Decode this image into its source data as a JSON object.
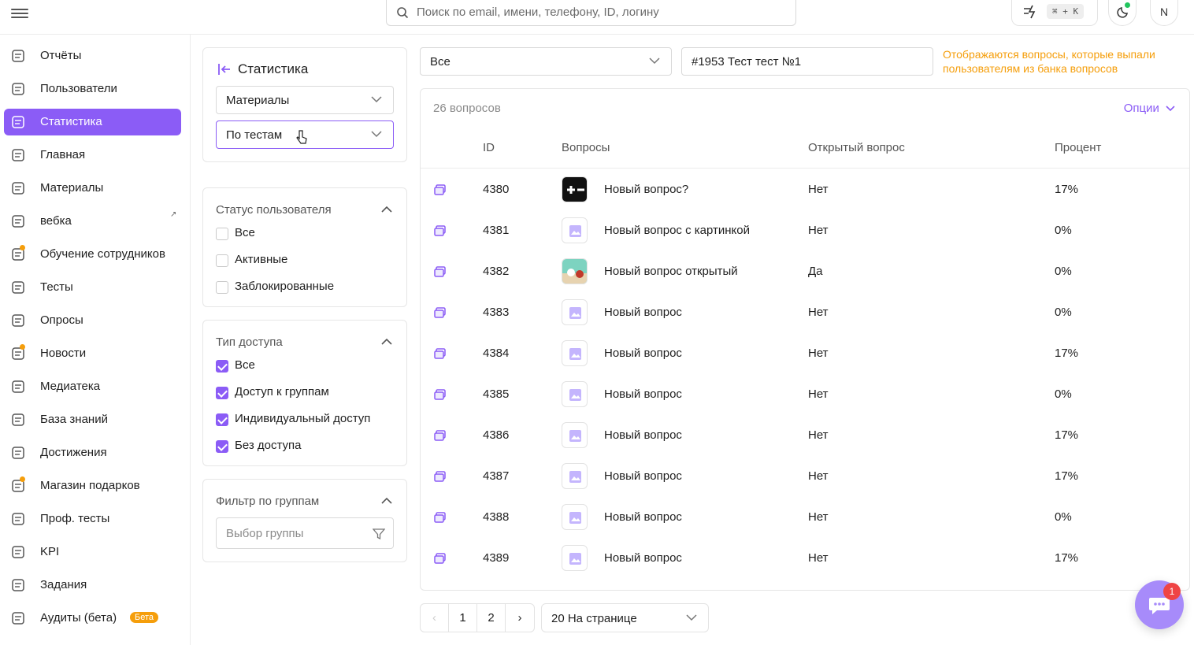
{
  "topbar": {
    "search_placeholder": "Поиск по email, имени, телефону, ID, логину",
    "shortcut": "⌘ + K",
    "avatar_initial": "N"
  },
  "sidebar": {
    "items": [
      {
        "label": "Отчёты",
        "icon": "report-icon"
      },
      {
        "label": "Пользователи",
        "icon": "users-icon"
      },
      {
        "label": "Статистика",
        "icon": "chart-icon",
        "active": true
      },
      {
        "label": "Главная",
        "icon": "home-icon"
      },
      {
        "label": "Материалы",
        "icon": "materials-icon"
      },
      {
        "label": "вебка",
        "icon": "external-link-icon"
      },
      {
        "label": "Обучение сотрудников",
        "icon": "training-icon"
      },
      {
        "label": "Тесты",
        "icon": "tests-icon"
      },
      {
        "label": "Опросы",
        "icon": "survey-icon"
      },
      {
        "label": "Новости",
        "icon": "news-icon"
      },
      {
        "label": "Медиатека",
        "icon": "media-icon"
      },
      {
        "label": "База знаний",
        "icon": "knowledge-icon"
      },
      {
        "label": "Достижения",
        "icon": "trophy-icon"
      },
      {
        "label": "Магазин подарков",
        "icon": "gift-icon"
      },
      {
        "label": "Проф. тесты",
        "icon": "prof-test-icon"
      },
      {
        "label": "KPI",
        "icon": "kpi-icon"
      },
      {
        "label": "Задания",
        "icon": "tasks-icon"
      },
      {
        "label": "Аудиты (бета)",
        "icon": "audit-icon"
      }
    ],
    "beta_badge": "Бета"
  },
  "filters": {
    "title": "Статистика",
    "material_select": "Материалы",
    "by_select": "По тестам",
    "user_status": {
      "title": "Статус пользователя",
      "options": [
        {
          "label": "Все",
          "checked": false
        },
        {
          "label": "Активные",
          "checked": false
        },
        {
          "label": "Заблокированные",
          "checked": false
        }
      ]
    },
    "access_type": {
      "title": "Тип доступа",
      "options": [
        {
          "label": "Все",
          "checked": true
        },
        {
          "label": "Доступ к группам",
          "checked": true
        },
        {
          "label": "Индивидуальный доступ",
          "checked": true
        },
        {
          "label": "Без доступа",
          "checked": true
        }
      ]
    },
    "group_filter": {
      "title": "Фильтр по группам",
      "placeholder": "Выбор группы"
    }
  },
  "main": {
    "select_all": "Все",
    "test_select": "#1953 Тест тест №1",
    "hint": "Отображаются вопросы, которые выпали пользователям из банка вопросов",
    "count": "26 вопросов",
    "options": "Опции",
    "columns": [
      "ID",
      "Вопросы",
      "Открытый вопрос",
      "Процент"
    ],
    "rows": [
      {
        "id": "4380",
        "question": "Новый вопрос?",
        "open": "Нет",
        "percent": "17%",
        "thumb": "dark"
      },
      {
        "id": "4381",
        "question": "Новый вопрос с картинкой",
        "open": "Нет",
        "percent": "0%",
        "thumb": "placeholder"
      },
      {
        "id": "4382",
        "question": "Новый вопрос открытый",
        "open": "Да",
        "percent": "0%",
        "thumb": "photo"
      },
      {
        "id": "4383",
        "question": "Новый вопрос",
        "open": "Нет",
        "percent": "0%",
        "thumb": "placeholder"
      },
      {
        "id": "4384",
        "question": "Новый вопрос",
        "open": "Нет",
        "percent": "17%",
        "thumb": "placeholder"
      },
      {
        "id": "4385",
        "question": "Новый вопрос",
        "open": "Нет",
        "percent": "0%",
        "thumb": "placeholder"
      },
      {
        "id": "4386",
        "question": "Новый вопрос",
        "open": "Нет",
        "percent": "17%",
        "thumb": "placeholder"
      },
      {
        "id": "4387",
        "question": "Новый вопрос",
        "open": "Нет",
        "percent": "17%",
        "thumb": "placeholder"
      },
      {
        "id": "4388",
        "question": "Новый вопрос",
        "open": "Нет",
        "percent": "0%",
        "thumb": "placeholder"
      },
      {
        "id": "4389",
        "question": "Новый вопрос",
        "open": "Нет",
        "percent": "17%",
        "thumb": "placeholder"
      }
    ],
    "pagination": {
      "prev": "‹",
      "pages": [
        "1",
        "2"
      ],
      "next": "›"
    },
    "per_page": "20 На странице"
  },
  "chat": {
    "unread": "1"
  },
  "colors": {
    "accent": "#8b5cf6",
    "warning": "#f59e0b",
    "online": "#22c55e",
    "notify": "#ef4444"
  }
}
